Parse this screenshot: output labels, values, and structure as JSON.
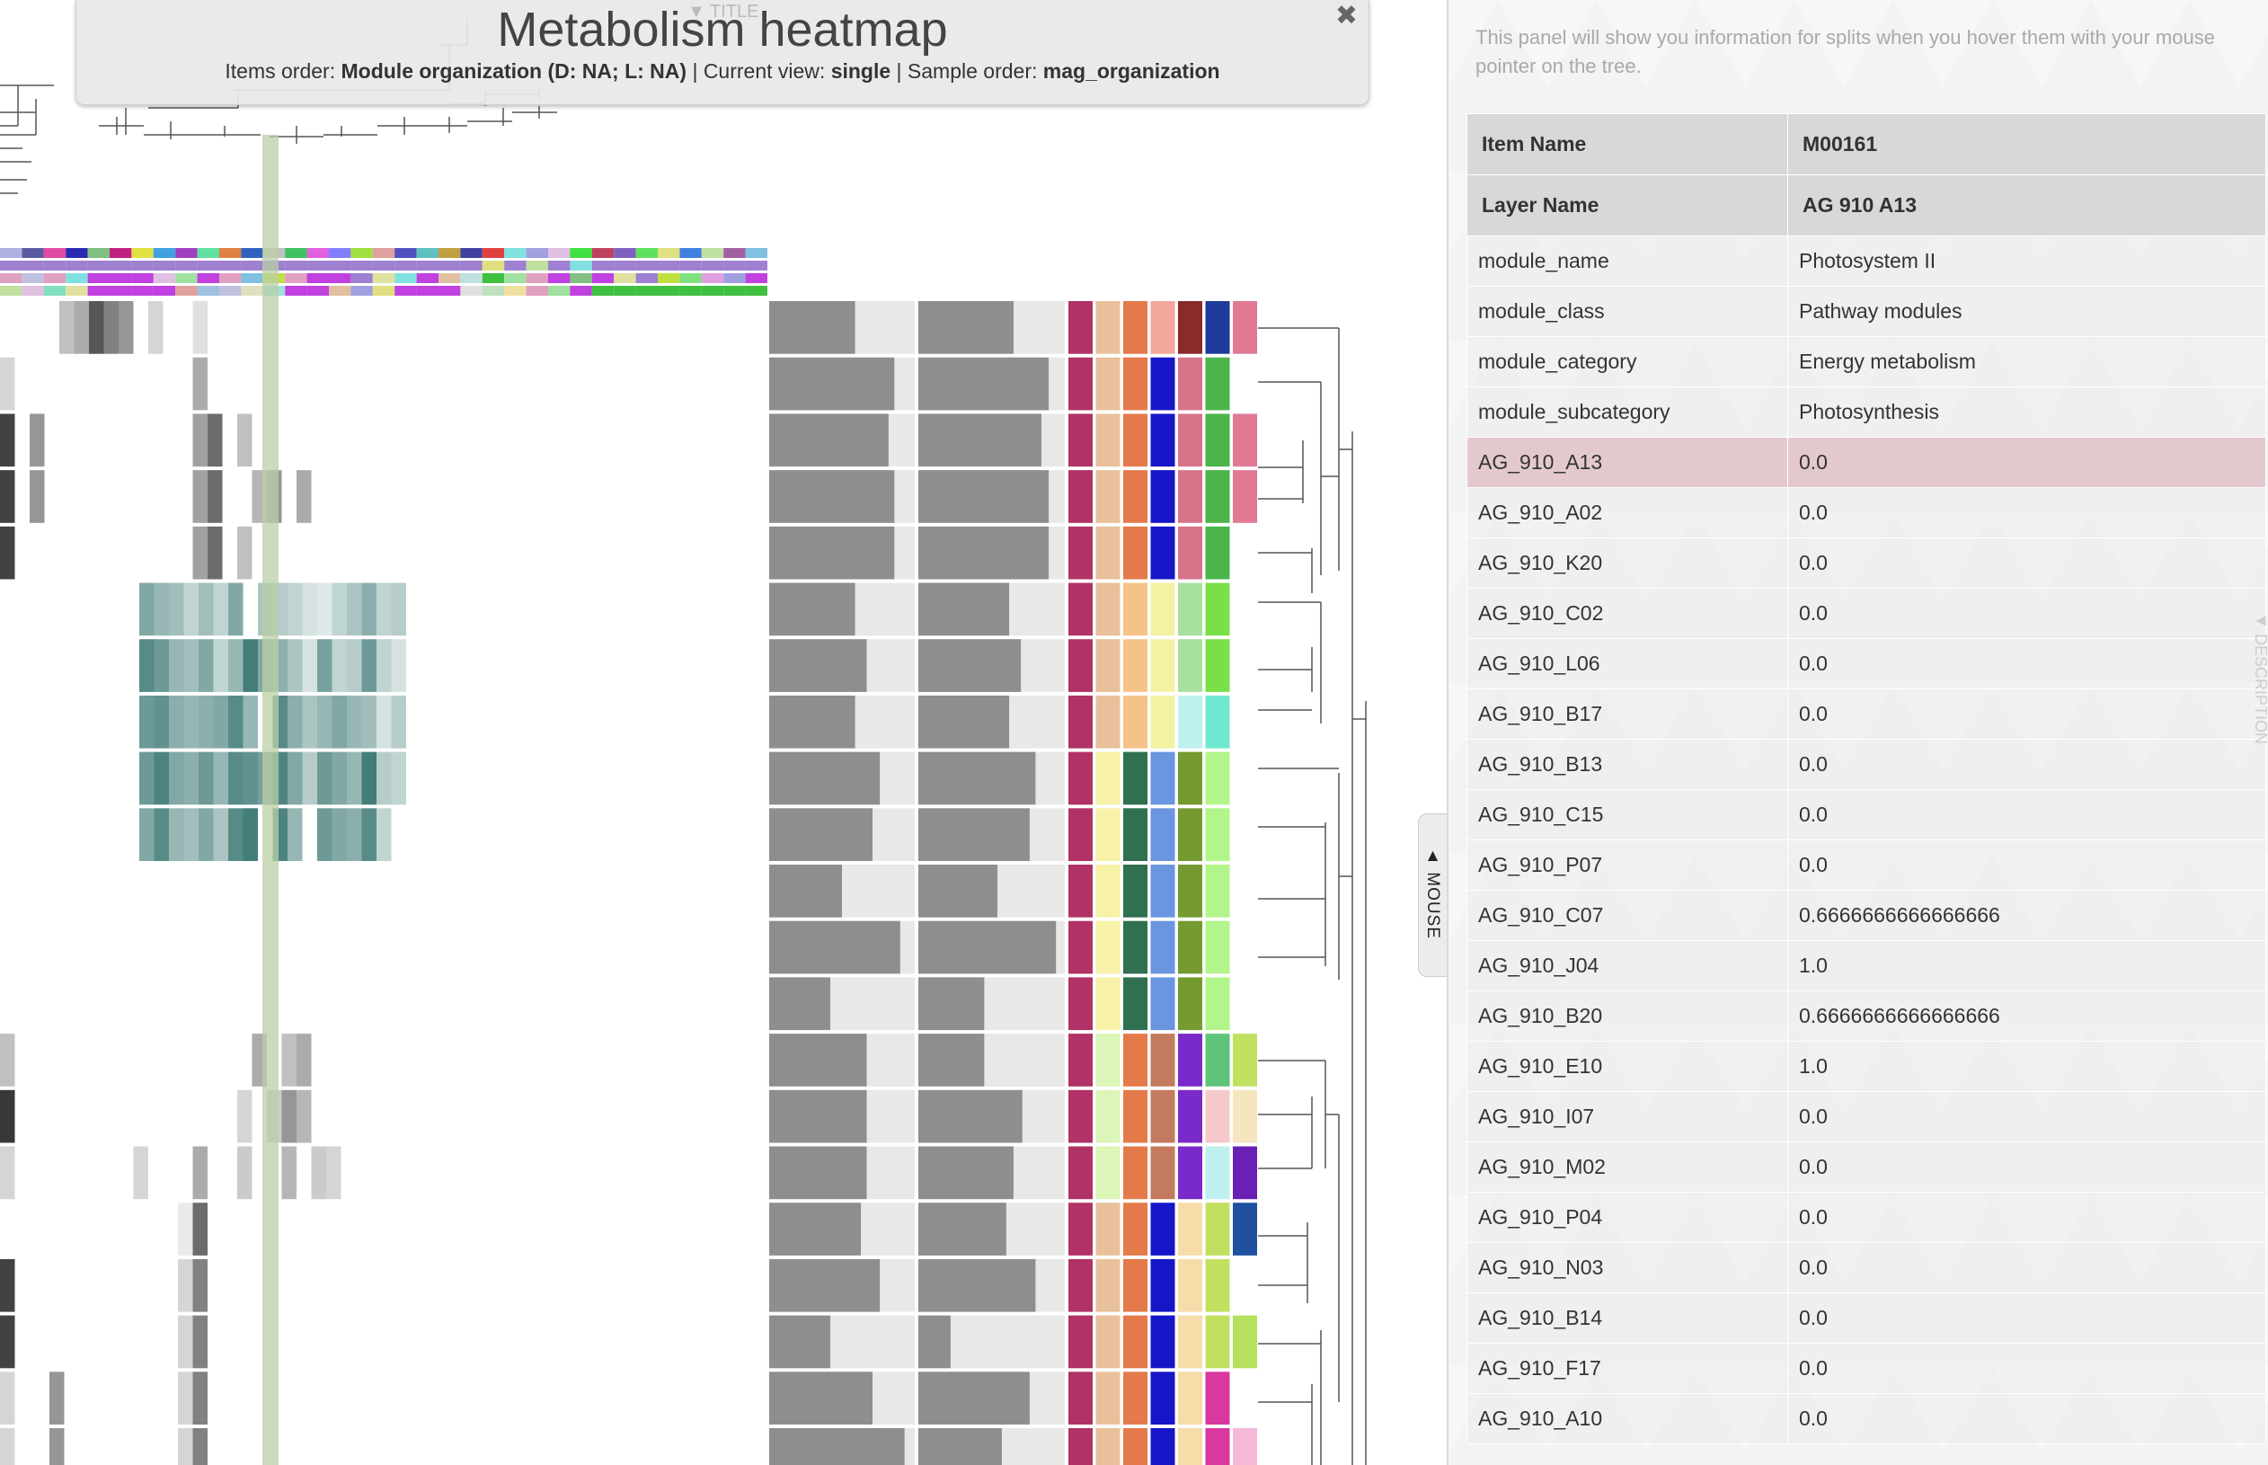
{
  "title_panel": {
    "toggle_label": "▼ TITLE",
    "title": "Metabolism heatmap",
    "items_order_label": "Items order: ",
    "items_order_value": "Module organization (D: NA; L: NA)",
    "current_view_label": " | Current view: ",
    "current_view_value": "single",
    "sample_order_label": " | Sample order: ",
    "sample_order_value": "mag_organization",
    "close_glyph": "✖"
  },
  "mouse_tab": {
    "label": "▲ MOUSE"
  },
  "info_panel": {
    "note": "This panel will show you information for splits when you hover them with your mouse pointer on the tree.",
    "description_tab": "◄ DESCRIPTION",
    "header": [
      {
        "key": "Item Name",
        "value": "M00161"
      },
      {
        "key": "Layer Name",
        "value": "AG 910 A13"
      }
    ],
    "rows": [
      {
        "key": "module_name",
        "value": "Photosystem II"
      },
      {
        "key": "module_class",
        "value": "Pathway modules"
      },
      {
        "key": "module_category",
        "value": "Energy metabolism"
      },
      {
        "key": "module_subcategory",
        "value": "Photosynthesis"
      },
      {
        "key": "AG_910_A13",
        "value": "0.0"
      },
      {
        "key": "AG_910_A02",
        "value": "0.0"
      },
      {
        "key": "AG_910_K20",
        "value": "0.0"
      },
      {
        "key": "AG_910_C02",
        "value": "0.0"
      },
      {
        "key": "AG_910_L06",
        "value": "0.0"
      },
      {
        "key": "AG_910_B17",
        "value": "0.0"
      },
      {
        "key": "AG_910_B13",
        "value": "0.0"
      },
      {
        "key": "AG_910_C15",
        "value": "0.0"
      },
      {
        "key": "AG_910_P07",
        "value": "0.0"
      },
      {
        "key": "AG_910_C07",
        "value": "0.6666666666666666"
      },
      {
        "key": "AG_910_J04",
        "value": "1.0"
      },
      {
        "key": "AG_910_B20",
        "value": "0.6666666666666666"
      },
      {
        "key": "AG_910_E10",
        "value": "1.0"
      },
      {
        "key": "AG_910_I07",
        "value": "0.0"
      },
      {
        "key": "AG_910_M02",
        "value": "0.0"
      },
      {
        "key": "AG_910_P04",
        "value": "0.0"
      },
      {
        "key": "AG_910_N03",
        "value": "0.0"
      },
      {
        "key": "AG_910_B14",
        "value": "0.0"
      },
      {
        "key": "AG_910_F17",
        "value": "0.0"
      },
      {
        "key": "AG_910_A10",
        "value": "0.0"
      }
    ],
    "highlight_row_key": "AG_910_A13"
  },
  "colors": {
    "highlight_column": "#b9cfa6",
    "bar_fill": "#8e8e8e",
    "bar_background": "#e8e8e8",
    "row_highlight": "#e1c4ca",
    "heat_teal": "#2e6e6a"
  },
  "heatmap": {
    "row_count": 21,
    "top_greys": [
      [
        0,
        0,
        0,
        0,
        0.3,
        0.4,
        0.8,
        0.6,
        0.5,
        0,
        0.2,
        0,
        0,
        0.15,
        0,
        0,
        0,
        0,
        0,
        0,
        0,
        0,
        0
      ],
      [
        0.2,
        0,
        0,
        0,
        0,
        0,
        0,
        0,
        0,
        0,
        0,
        0,
        0,
        0.4,
        0,
        0,
        0,
        0,
        0,
        0,
        0,
        0,
        0
      ],
      [
        0.9,
        0,
        0.5,
        0,
        0,
        0,
        0,
        0,
        0,
        0,
        0,
        0,
        0,
        0.45,
        0.7,
        0,
        0.3,
        0,
        0,
        0,
        0,
        0,
        0
      ],
      [
        0.9,
        0,
        0.5,
        0,
        0,
        0,
        0,
        0,
        0,
        0,
        0,
        0,
        0,
        0.45,
        0.7,
        0,
        0,
        0.35,
        0.5,
        0,
        0.4,
        0,
        0
      ],
      [
        0.9,
        0,
        0,
        0,
        0,
        0,
        0,
        0,
        0,
        0,
        0,
        0,
        0,
        0.45,
        0.7,
        0,
        0.3,
        0,
        0,
        0,
        0,
        0,
        0
      ]
    ],
    "teal_rows": [
      [
        0,
        0,
        0,
        0,
        0,
        0.6,
        0.5,
        0.45,
        0.3,
        0.45,
        0.3,
        0.6,
        0,
        0.4,
        0.35,
        0.3,
        0.2,
        0.15,
        0.3,
        0.4,
        0.55,
        0.3,
        0.35
      ],
      [
        0,
        0,
        0,
        0,
        0,
        0.8,
        0.7,
        0.5,
        0.45,
        0.6,
        0.3,
        0.5,
        0.9,
        0.6,
        0.55,
        0.4,
        0.2,
        0.65,
        0.3,
        0.35,
        0.7,
        0.3,
        0.2
      ],
      [
        0,
        0,
        0,
        0,
        0,
        0.7,
        0.75,
        0.55,
        0.5,
        0.55,
        0.6,
        0.8,
        0.5,
        0,
        0.8,
        0.55,
        0.4,
        0.5,
        0.6,
        0.5,
        0.45,
        0.2,
        0.35
      ],
      [
        0,
        0,
        0,
        0,
        0,
        0.7,
        0.85,
        0.6,
        0.55,
        0.7,
        0.5,
        0.8,
        0.75,
        0.65,
        0.85,
        0.6,
        0.35,
        0.7,
        0.6,
        0.5,
        0.9,
        0.35,
        0.3
      ],
      [
        0,
        0,
        0,
        0,
        0,
        0.6,
        0.8,
        0.5,
        0.45,
        0.6,
        0.4,
        0.8,
        0.9,
        0,
        0.85,
        0.5,
        0,
        0.7,
        0.6,
        0.55,
        0.8,
        0.3,
        0
      ]
    ],
    "bottom_greys": [
      [
        0.3,
        0,
        0,
        0,
        0,
        0,
        0,
        0,
        0,
        0,
        0,
        0,
        0,
        0,
        0,
        0,
        0,
        0.4,
        0,
        0.3,
        0.4,
        0,
        0
      ],
      [
        0.95,
        0,
        0,
        0,
        0,
        0,
        0,
        0,
        0,
        0,
        0,
        0,
        0,
        0,
        0,
        0,
        0.2,
        0,
        0.25,
        0.5,
        0.35,
        0,
        0
      ],
      [
        0.2,
        0,
        0,
        0,
        0,
        0,
        0,
        0,
        0,
        0.2,
        0,
        0,
        0,
        0.4,
        0,
        0,
        0.25,
        0,
        0,
        0.35,
        0,
        0.25,
        0.2
      ],
      [
        0,
        0,
        0,
        0,
        0,
        0,
        0,
        0,
        0,
        0,
        0,
        0,
        0.1,
        0.7,
        0,
        0,
        0,
        0,
        0,
        0,
        0,
        0,
        0
      ],
      [
        0.9,
        0,
        0,
        0,
        0,
        0,
        0,
        0,
        0,
        0,
        0,
        0,
        0.2,
        0.6,
        0,
        0,
        0,
        0,
        0,
        0,
        0,
        0,
        0
      ],
      [
        0.9,
        0,
        0,
        0,
        0,
        0,
        0,
        0,
        0,
        0,
        0,
        0,
        0.2,
        0.6,
        0,
        0,
        0,
        0,
        0,
        0,
        0,
        0,
        0
      ],
      [
        0.2,
        0.5,
        0,
        0,
        0,
        0,
        0,
        0,
        0,
        0,
        0,
        0,
        0.2,
        0.6,
        0,
        0,
        0,
        0,
        0,
        0,
        0,
        0,
        0
      ],
      [
        0.2,
        0.5,
        0,
        0,
        0,
        0,
        0,
        0,
        0,
        0,
        0,
        0,
        0.2,
        0.6,
        0,
        0,
        0,
        0,
        0,
        0,
        0,
        0,
        0
      ]
    ],
    "bar1": [
      0.59,
      0.86,
      0.82,
      0.86,
      0.86,
      0.59,
      0.67,
      0.59,
      0.76,
      0.71,
      0.5,
      0.9,
      0.42,
      0.67,
      0.67,
      0.67,
      0.63,
      0.76,
      0.42,
      0.71,
      0.93
    ],
    "bar2": [
      0.65,
      0.89,
      0.84,
      0.89,
      0.89,
      0.62,
      0.7,
      0.62,
      0.8,
      0.76,
      0.54,
      0.94,
      0.45,
      0.45,
      0.71,
      0.65,
      0.6,
      0.8,
      0.22,
      0.76,
      0.57
    ],
    "color_layers": [
      [
        "#b03266",
        "#e8c09b",
        "#e47a4a",
        "#f2a79c",
        "#8a2a2a",
        "#1c3a99",
        "#e07a95"
      ],
      [
        "#b03266",
        "#e8c09b",
        "#e47a4a",
        "#1616c9",
        "#d6748a",
        "#4bb54b",
        "#ffffff"
      ],
      [
        "#b03266",
        "#e8c09b",
        "#e47a4a",
        "#1616c9",
        "#d6748a",
        "#4bb54b",
        "#e07a95"
      ],
      [
        "#b03266",
        "#e8c09b",
        "#e47a4a",
        "#1616c9",
        "#d6748a",
        "#4bb54b",
        "#e07a95"
      ],
      [
        "#b03266",
        "#e8c09b",
        "#e47a4a",
        "#1616c9",
        "#d6748a",
        "#4bb54b",
        "#ffffff"
      ],
      [
        "#b03266",
        "#e8c09b",
        "#f5c38a",
        "#f2f2a2",
        "#a8e0a0",
        "#7ae04a",
        "#ffffff"
      ],
      [
        "#b03266",
        "#e8c09b",
        "#f5c38a",
        "#f2f2a2",
        "#a8e0a0",
        "#7ae04a",
        "#ffffff"
      ],
      [
        "#b03266",
        "#e8c09b",
        "#f5c38a",
        "#f2f2a2",
        "#bff0f0",
        "#70e8cf",
        "#ffffff"
      ],
      [
        "#b03266",
        "#f7f2a8",
        "#2e7050",
        "#6a96e0",
        "#749a30",
        "#b2f58a",
        "#ffffff"
      ],
      [
        "#b03266",
        "#f7f2a8",
        "#2e7050",
        "#6a96e0",
        "#749a30",
        "#b2f58a",
        "#ffffff"
      ],
      [
        "#b03266",
        "#f7f2a8",
        "#2e7050",
        "#6a96e0",
        "#749a30",
        "#b2f58a",
        "#ffffff"
      ],
      [
        "#b03266",
        "#f7f2a8",
        "#2e7050",
        "#6a96e0",
        "#749a30",
        "#b2f58a",
        "#ffffff"
      ],
      [
        "#b03266",
        "#f7f2a8",
        "#2e7050",
        "#6a96e0",
        "#749a30",
        "#b2f58a",
        "#ffffff"
      ],
      [
        "#b03266",
        "#dcf5b8",
        "#e47a4a",
        "#c47a5e",
        "#7a2ac9",
        "#5ec47a",
        "#c2e060"
      ],
      [
        "#b03266",
        "#dcf5b8",
        "#e47a4a",
        "#c47a5e",
        "#7a2ac9",
        "#f5c9c9",
        "#f5e6c0"
      ],
      [
        "#b03266",
        "#dcf5b8",
        "#e47a4a",
        "#c47a5e",
        "#7a2ac9",
        "#bff0f0",
        "#6a1fb5"
      ],
      [
        "#b03266",
        "#e8c09b",
        "#e47a4a",
        "#1616c9",
        "#f5dca8",
        "#c2e060",
        "#2050a0"
      ],
      [
        "#b03266",
        "#e8c09b",
        "#e47a4a",
        "#1616c9",
        "#f5dca8",
        "#c2e060",
        "#ffffff"
      ],
      [
        "#b03266",
        "#e8c09b",
        "#e47a4a",
        "#1616c9",
        "#f5dca8",
        "#c2e060",
        "#b5e060"
      ],
      [
        "#b03266",
        "#e8c09b",
        "#e47a4a",
        "#1616c9",
        "#f5dca8",
        "#d9389e",
        "#ffffff"
      ],
      [
        "#b03266",
        "#e8c09b",
        "#e47a4a",
        "#1616c9",
        "#f5dca8",
        "#d9389e",
        "#f5b8d8"
      ]
    ],
    "sample_strips": [
      [
        "#b0b0e0",
        "#5a5aa0",
        "#e04aa0",
        "#2a2ab0",
        "#80c080",
        "#c02080",
        "#e0e040",
        "#40a0e0",
        "#a040c0",
        "#60e0a0",
        "#e08040",
        "#3060c0",
        "#c0c0c0",
        "#40c060",
        "#e060e0",
        "#8080ff",
        "#a0e040",
        "#e0a0a0",
        "#5050c0",
        "#60c0c0",
        "#c0a040",
        "#4040a0",
        "#e04040",
        "#80e0e0",
        "#a0a0e0",
        "#e0c0e0",
        "#40e040",
        "#c04060",
        "#8060c0",
        "#60e060",
        "#e0e080",
        "#4080e0",
        "#c0e0a0",
        "#a060a0",
        "#80c0e0"
      ],
      [
        "#a080d0",
        "#a080d0",
        "#a080d0",
        "#a080d0",
        "#a080d0",
        "#a080d0",
        "#a080d0",
        "#a080d0",
        "#a080d0",
        "#a080d0",
        "#a080d0",
        "#a080d0",
        "#a080d0",
        "#a080d0",
        "#a080d0",
        "#a080d0",
        "#a080d0",
        "#a080d0",
        "#a080d0",
        "#a080d0",
        "#a080d0",
        "#a080d0",
        "#e0e080",
        "#a080d0",
        "#c0e0a0",
        "#a080d0",
        "#80e0e0",
        "#a080d0",
        "#a080d0",
        "#a080d0",
        "#a080d0",
        "#a080d0",
        "#a080d0",
        "#a080d0",
        "#a080d0"
      ],
      [
        "#e0a0c0",
        "#c0c0e0",
        "#e0a0c0",
        "#80e0e0",
        "#c040e0",
        "#c040e0",
        "#c040e0",
        "#e0c0e0",
        "#a0e0a0",
        "#c040e0",
        "#e0a0c0",
        "#80c0e0",
        "#c0e040",
        "#e0a0c0",
        "#c040e0",
        "#c040e0",
        "#a080d0",
        "#e0e0a0",
        "#80e0e0",
        "#c040e0",
        "#e0c0a0",
        "#c0e0e0",
        "#40c040",
        "#a0e0a0",
        "#e0a0c0",
        "#c040e0",
        "#80c080",
        "#c040e0",
        "#e0e0a0",
        "#a080d0",
        "#c0e040",
        "#80e080",
        "#e0a0e0",
        "#a0a0e0",
        "#c040e0"
      ],
      [
        "#c0e0a0",
        "#e0c0e0",
        "#80e0c0",
        "#e0e0a0",
        "#c040e0",
        "#c040e0",
        "#c040e0",
        "#c040e0",
        "#e0a0a0",
        "#a0c0e0",
        "#c0c0e0",
        "#e0e0c0",
        "#a0e0e0",
        "#c040e0",
        "#c040e0",
        "#e0c0a0",
        "#a0a0e0",
        "#e0e080",
        "#c040e0",
        "#c040e0",
        "#c040e0",
        "#e0e0e0",
        "#c0e0c0",
        "#f0e0a0",
        "#e0a0c0",
        "#a0e0a0",
        "#c040e0",
        "#40c040",
        "#40c040",
        "#40c040",
        "#40c040",
        "#40c040",
        "#40c040",
        "#40c040",
        "#40c040"
      ]
    ]
  }
}
